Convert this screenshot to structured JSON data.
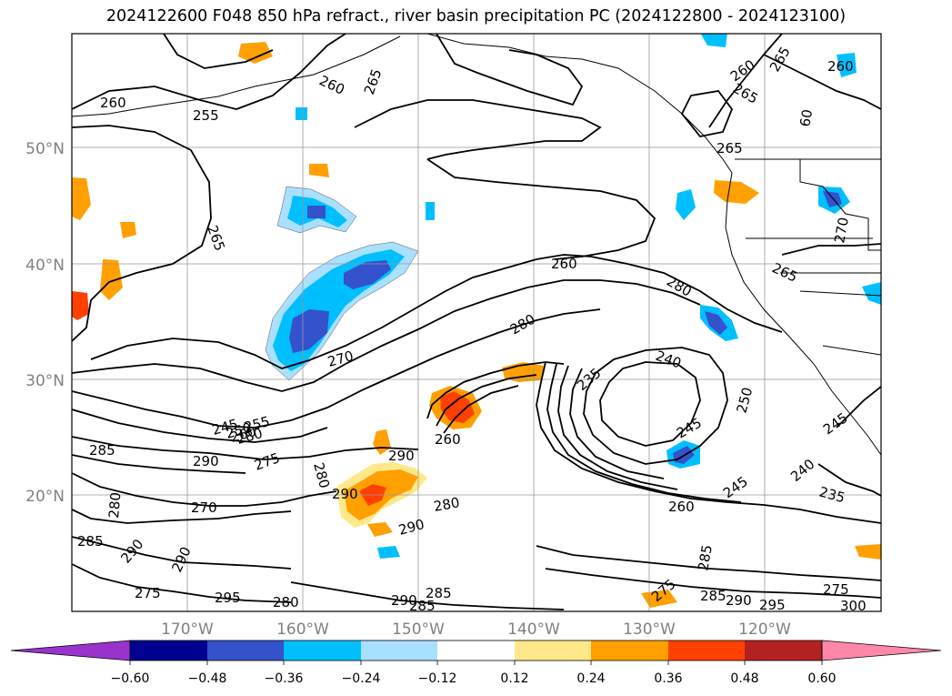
{
  "title": "2024122600 F048 850 hPa refract., river basin precipitation PC (2024122800 - 2024123100)",
  "lat_labels": [
    "50°N",
    "40°N",
    "30°N",
    "20°N"
  ],
  "lon_labels": [
    "170°W",
    "160°W",
    "150°W",
    "140°W",
    "130°W",
    "120°W"
  ],
  "colorbar": {
    "tick_labels": [
      "−0.60",
      "−0.48",
      "−0.36",
      "−0.24",
      "−0.12",
      "0.12",
      "0.24",
      "0.36",
      "0.48",
      "0.60"
    ],
    "colors": [
      "#9933cc",
      "#000090",
      "#3352cc",
      "#00bfff",
      "#aae0ff",
      "#ffffff",
      "#ffe88a",
      "#ffa000",
      "#ff4000",
      "#b22222",
      "#ff88aa"
    ]
  },
  "contour_labels": [
    {
      "id": "c1",
      "text": "260"
    },
    {
      "id": "c2",
      "text": "255"
    },
    {
      "id": "c3",
      "text": "260"
    },
    {
      "id": "c4",
      "text": "265"
    },
    {
      "id": "c5",
      "text": "260"
    },
    {
      "id": "c6",
      "text": "265"
    },
    {
      "id": "c7",
      "text": "260"
    },
    {
      "id": "c8",
      "text": "265"
    },
    {
      "id": "c9",
      "text": "60"
    },
    {
      "id": "c10",
      "text": "265"
    },
    {
      "id": "c11",
      "text": "265"
    },
    {
      "id": "c12",
      "text": "260"
    },
    {
      "id": "c13",
      "text": "280"
    },
    {
      "id": "c14",
      "text": "265"
    },
    {
      "id": "c15",
      "text": "270"
    },
    {
      "id": "c16",
      "text": "280"
    },
    {
      "id": "c17",
      "text": "270"
    },
    {
      "id": "c18",
      "text": "240"
    },
    {
      "id": "c19",
      "text": "235"
    },
    {
      "id": "c20",
      "text": "250"
    },
    {
      "id": "c21",
      "text": "245"
    },
    {
      "id": "c22",
      "text": "245"
    },
    {
      "id": "c23",
      "text": "240"
    },
    {
      "id": "c24",
      "text": "235"
    },
    {
      "id": "c25",
      "text": "245"
    },
    {
      "id": "c26",
      "text": "260"
    },
    {
      "id": "c27",
      "text": "285"
    },
    {
      "id": "c28",
      "text": "290"
    },
    {
      "id": "c29",
      "text": "275"
    },
    {
      "id": "c30",
      "text": "290"
    },
    {
      "id": "c31",
      "text": "280"
    },
    {
      "id": "c32",
      "text": "290"
    },
    {
      "id": "c33",
      "text": "260"
    },
    {
      "id": "c34",
      "text": "280"
    },
    {
      "id": "c35",
      "text": "290"
    },
    {
      "id": "c36",
      "text": "270"
    },
    {
      "id": "c37",
      "text": "285"
    },
    {
      "id": "c38",
      "text": "290"
    },
    {
      "id": "c39",
      "text": "290"
    },
    {
      "id": "c40",
      "text": "275"
    },
    {
      "id": "c41",
      "text": "295"
    },
    {
      "id": "c42",
      "text": "280"
    },
    {
      "id": "c43",
      "text": "285"
    },
    {
      "id": "c44",
      "text": "290"
    },
    {
      "id": "c45",
      "text": "285"
    },
    {
      "id": "c46",
      "text": "275"
    },
    {
      "id": "c47",
      "text": "285"
    },
    {
      "id": "c48",
      "text": "290"
    },
    {
      "id": "c49",
      "text": "295"
    },
    {
      "id": "c50",
      "text": "275"
    },
    {
      "id": "c51",
      "text": "300"
    },
    {
      "id": "c52",
      "text": "280"
    },
    {
      "id": "c53",
      "text": "285"
    },
    {
      "id": "c54",
      "text": "280"
    },
    {
      "id": "c55",
      "text": "245"
    },
    {
      "id": "c56",
      "text": "250"
    },
    {
      "id": "c57",
      "text": "255"
    },
    {
      "id": "c58",
      "text": "260"
    }
  ]
}
